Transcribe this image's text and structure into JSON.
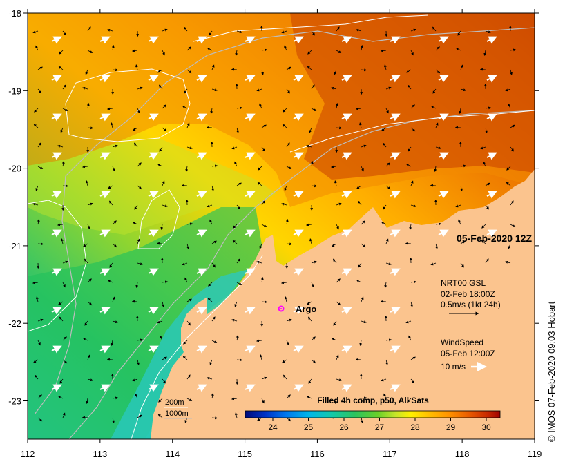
{
  "map": {
    "lon_ticks": [
      "112",
      "113",
      "114",
      "115",
      "116",
      "117",
      "118",
      "119"
    ],
    "lat_ticks": [
      "-18",
      "-19",
      "-20",
      "-21",
      "-22",
      "-23"
    ],
    "timestamp": "05-Feb-2020 12Z",
    "argo_label": "Argo",
    "isobaths": [
      "200m",
      "1000m"
    ],
    "current_legend": {
      "title": "NRT00 GSL",
      "time": "02-Feb 18:00Z",
      "scale": "0.5m/s (1kt 24h)"
    },
    "wind_legend": {
      "title": "WindSpeed",
      "time": "05-Feb 12:00Z",
      "scale": "10 m/s"
    },
    "colorbar": {
      "title": "Filled 4h comp, p50, All Sats",
      "ticks": [
        "24",
        "25",
        "26",
        "27",
        "28",
        "29",
        "30"
      ],
      "colors": [
        "#000a7a",
        "#0033c8",
        "#0077ee",
        "#00b6e8",
        "#12c9a9",
        "#2cc45e",
        "#6ad02a",
        "#c6e42a",
        "#fff000",
        "#ffc000",
        "#ff9200",
        "#e85a00",
        "#c82a00",
        "#a00000"
      ]
    },
    "credit": "© IMOS 07-Feb-2020 09:03 Hobart",
    "colors": {
      "land": "#fbc48e",
      "ocean_warm": "#e36b00",
      "ocean_cool": "#18c9a8"
    }
  }
}
